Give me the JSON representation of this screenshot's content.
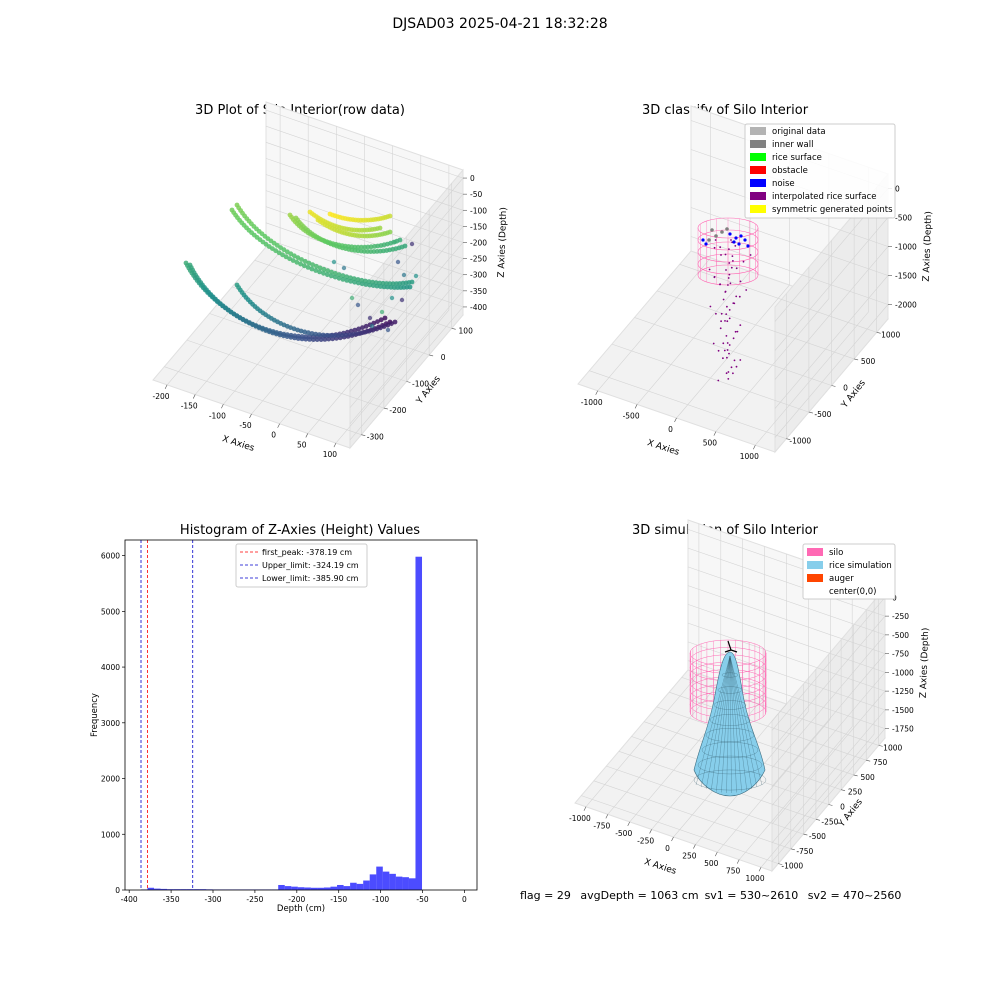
{
  "figure": {
    "suptitle": "DJSAD03 2025-04-21 18:32:28",
    "status": {
      "flag": "flag = 29",
      "avg_depth": "avgDepth = 1063 cm",
      "sv1": "sv1 = 530~2610",
      "sv2": "sv2 = 470~2560"
    }
  },
  "panels": {
    "raw": {
      "title": "3D Plot of Silo Interior(row data)",
      "xlabel": "X Axies",
      "ylabel": "Y Axies",
      "zlabel": "Z Axies (Depth)",
      "xticks": [
        "-200",
        "-150",
        "-100",
        "-50",
        "0",
        "50",
        "100"
      ],
      "yticks": [
        "100",
        "0",
        "-100",
        "-200",
        "-300"
      ],
      "zticks": [
        "0",
        "-50",
        "-100",
        "-150",
        "-200",
        "-250",
        "-300",
        "-350",
        "-400"
      ]
    },
    "classify": {
      "title": "3D classify of Silo Interior",
      "xlabel": "X Axies",
      "ylabel": "Y Axies",
      "zlabel": "Z Axies (Depth)",
      "xticks": [
        "-1000",
        "-500",
        "0",
        "500",
        "1000"
      ],
      "yticks": [
        "1000",
        "500",
        "0",
        "-500",
        "-1000"
      ],
      "zticks": [
        "0",
        "-500",
        "-1000",
        "-1500",
        "-2000"
      ],
      "legend": [
        {
          "label": "original data",
          "color": "#b3b3b3"
        },
        {
          "label": "inner wall",
          "color": "#808080"
        },
        {
          "label": "rice surface",
          "color": "#00ff00"
        },
        {
          "label": "obstacle",
          "color": "#ff0000"
        },
        {
          "label": "noise",
          "color": "#0000ff"
        },
        {
          "label": "interpolated rice surface",
          "color": "#800080"
        },
        {
          "label": "symmetric generated points",
          "color": "#ffff00"
        }
      ]
    },
    "simulation": {
      "title": "3D simulation of Silo Interior",
      "xlabel": "X Axies",
      "ylabel": "Y Axies",
      "zlabel": "Z Axies (Depth)",
      "xticks": [
        "-1000",
        "-750",
        "-500",
        "-250",
        "0",
        "250",
        "500",
        "750",
        "1000"
      ],
      "yticks": [
        "1000",
        "750",
        "500",
        "250",
        "0",
        "-250",
        "-500",
        "-750",
        "-1000"
      ],
      "zticks": [
        "0",
        "-250",
        "-500",
        "-750",
        "-1000",
        "-1250",
        "-1500",
        "-1750"
      ],
      "legend": [
        {
          "label": "silo",
          "color": "#ff69b4"
        },
        {
          "label": "rice simulation",
          "color": "#87ceeb"
        },
        {
          "label": "auger",
          "color": "#ff4500"
        },
        {
          "label": "center(0,0)",
          "color": ""
        }
      ]
    }
  },
  "chart_data": [
    {
      "type": "histogram",
      "title": "Histogram of Z-Axies (Height) Values",
      "xlabel": "Depth (cm)",
      "ylabel": "Frequency",
      "xlim": [
        -405,
        15
      ],
      "ylim": [
        0,
        6280
      ],
      "xticks": [
        -400,
        -350,
        -300,
        -250,
        -200,
        -150,
        -100,
        -50,
        0
      ],
      "yticks": [
        0,
        1000,
        2000,
        3000,
        4000,
        5000,
        6000
      ],
      "bin_width": 7.8,
      "bin_start": -386,
      "frequencies": [
        10,
        40,
        25,
        20,
        15,
        15,
        15,
        15,
        15,
        15,
        12,
        10,
        10,
        10,
        10,
        10,
        10,
        10,
        10,
        10,
        10,
        90,
        70,
        60,
        50,
        45,
        40,
        40,
        45,
        60,
        90,
        70,
        130,
        110,
        170,
        280,
        420,
        330,
        290,
        240,
        230,
        210,
        5980
      ],
      "color": "#0000ff",
      "vlines": [
        {
          "label": "first_peak: -378.19 cm",
          "x": -378.19,
          "color": "#ff0000"
        },
        {
          "label": "Upper_limit: -324.19 cm",
          "x": -324.19,
          "color": "#0000cc"
        },
        {
          "label": "Lower_limit: -385.90 cm",
          "x": -385.9,
          "color": "#0000cc"
        }
      ]
    }
  ]
}
